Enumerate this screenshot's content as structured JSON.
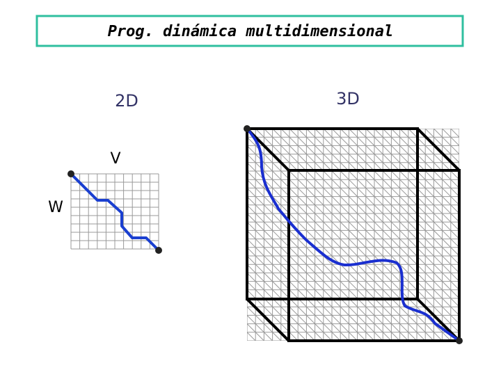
{
  "title": "Prog. dinámica multidimensional",
  "panels": {
    "left": {
      "label": "2D",
      "axis_top": "V",
      "axis_left": "W"
    },
    "right": {
      "label": "3D"
    }
  }
}
